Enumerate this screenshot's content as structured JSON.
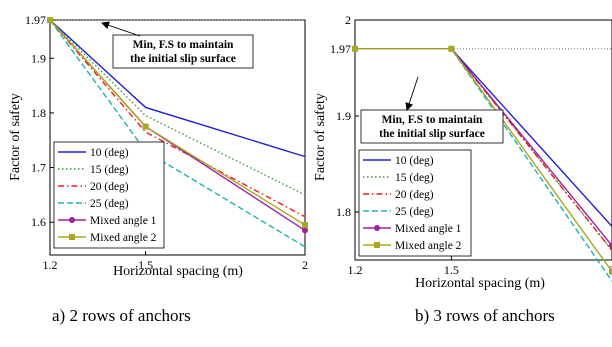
{
  "chart_data": [
    {
      "type": "line",
      "xlabel": "Horizontal spacing (m)",
      "ylabel": "Factor of safety",
      "xlim": [
        1.2,
        2.0
      ],
      "ylim": [
        1.54,
        1.97
      ],
      "xticks": [
        "1.2",
        "1.5",
        "2"
      ],
      "yticks": [
        "1.97",
        "1.9",
        "1.8",
        "1.7",
        "1.6"
      ],
      "x": [
        1.2,
        1.5,
        2.0
      ],
      "reference_line": {
        "y": 1.97,
        "style": "dotted"
      },
      "annotation": [
        "Min, F.S to maintain",
        "the initial slip surface"
      ],
      "legend_position": "lower-left",
      "series": [
        {
          "name": "10 (deg)",
          "values": [
            1.97,
            1.81,
            1.72
          ],
          "color": "#1f1fd6",
          "dash": "solid",
          "marker": "none"
        },
        {
          "name": "15 (deg)",
          "values": [
            1.97,
            1.795,
            1.65
          ],
          "color": "#3a9a3a",
          "dash": "dotted",
          "marker": "none"
        },
        {
          "name": "20 (deg)",
          "values": [
            1.97,
            1.765,
            1.61
          ],
          "color": "#e02020",
          "dash": "dashdot",
          "marker": "none"
        },
        {
          "name": "25 (deg)",
          "values": [
            1.97,
            1.73,
            1.555
          ],
          "color": "#20b0b0",
          "dash": "dashed",
          "marker": "none"
        },
        {
          "name": "Mixed angle 1",
          "values": [
            1.97,
            1.775,
            1.585
          ],
          "color": "#a020a0",
          "dash": "solid",
          "marker": "circle"
        },
        {
          "name": "Mixed angle 2",
          "values": [
            1.97,
            1.775,
            1.595
          ],
          "color": "#a8a820",
          "dash": "solid",
          "marker": "square"
        }
      ]
    },
    {
      "type": "line",
      "xlabel": "Horizontal spacing (m)",
      "ylabel": "Factor of safety",
      "xlim": [
        1.2,
        2.0
      ],
      "ylim": [
        1.75,
        2.0
      ],
      "xticks": [
        "1.2",
        "1.5",
        "2"
      ],
      "yticks": [
        "2",
        "1.97",
        "1.9",
        "1.8"
      ],
      "x": [
        1.2,
        1.5,
        2.0
      ],
      "reference_line": {
        "y": 1.97,
        "style": "dotted"
      },
      "annotation": [
        "Min, F.S to maintain",
        "the initial slip surface"
      ],
      "legend_position": "lower-left",
      "series": [
        {
          "name": "10 (deg)",
          "values": [
            1.97,
            1.97,
            1.785
          ],
          "color": "#1f1fd6",
          "dash": "solid",
          "marker": "none"
        },
        {
          "name": "15 (deg)",
          "values": [
            1.97,
            1.97,
            1.76
          ],
          "color": "#3a9a3a",
          "dash": "dotted",
          "marker": "none"
        },
        {
          "name": "20 (deg)",
          "values": [
            1.97,
            1.97,
            1.76
          ],
          "color": "#e02020",
          "dash": "dashdot",
          "marker": "none"
        },
        {
          "name": "25 (deg)",
          "values": [
            1.97,
            1.97,
            1.728
          ],
          "color": "#20b0b0",
          "dash": "dashed",
          "marker": "none"
        },
        {
          "name": "Mixed angle 1",
          "values": [
            1.97,
            1.97,
            1.765
          ],
          "color": "#a020a0",
          "dash": "solid",
          "marker": "circle"
        },
        {
          "name": "Mixed angle 2",
          "values": [
            1.97,
            1.97,
            1.738
          ],
          "color": "#a8a820",
          "dash": "solid",
          "marker": "square"
        }
      ]
    }
  ],
  "captions": {
    "a": "a) 2 rows of anchors",
    "b": "b) 3 rows of anchors"
  }
}
